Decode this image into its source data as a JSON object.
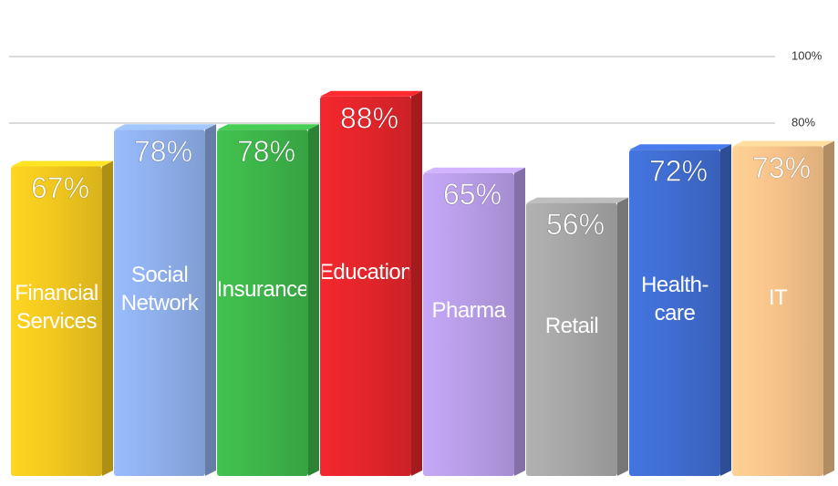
{
  "chart_data": {
    "type": "bar",
    "categories": [
      "Financial Services",
      "Social Network",
      "Insurance",
      "Education",
      "Pharma",
      "Retail",
      "Health-care",
      "IT"
    ],
    "values": [
      67,
      78,
      78,
      88,
      65,
      56,
      72,
      73
    ],
    "value_labels": [
      "67%",
      "78%",
      "78%",
      "88%",
      "65%",
      "56%",
      "72%",
      "73%"
    ],
    "colors": [
      "#f0c61f",
      "#8eaeea",
      "#3db449",
      "#e2252b",
      "#b79ce6",
      "#a5a5a5",
      "#3f6ccf",
      "#f6c28a"
    ],
    "ylim": [
      0,
      100
    ],
    "yticks": [
      {
        "value": 80,
        "label": "80%"
      },
      {
        "value": 100,
        "label": "100%"
      }
    ],
    "grid": true
  }
}
